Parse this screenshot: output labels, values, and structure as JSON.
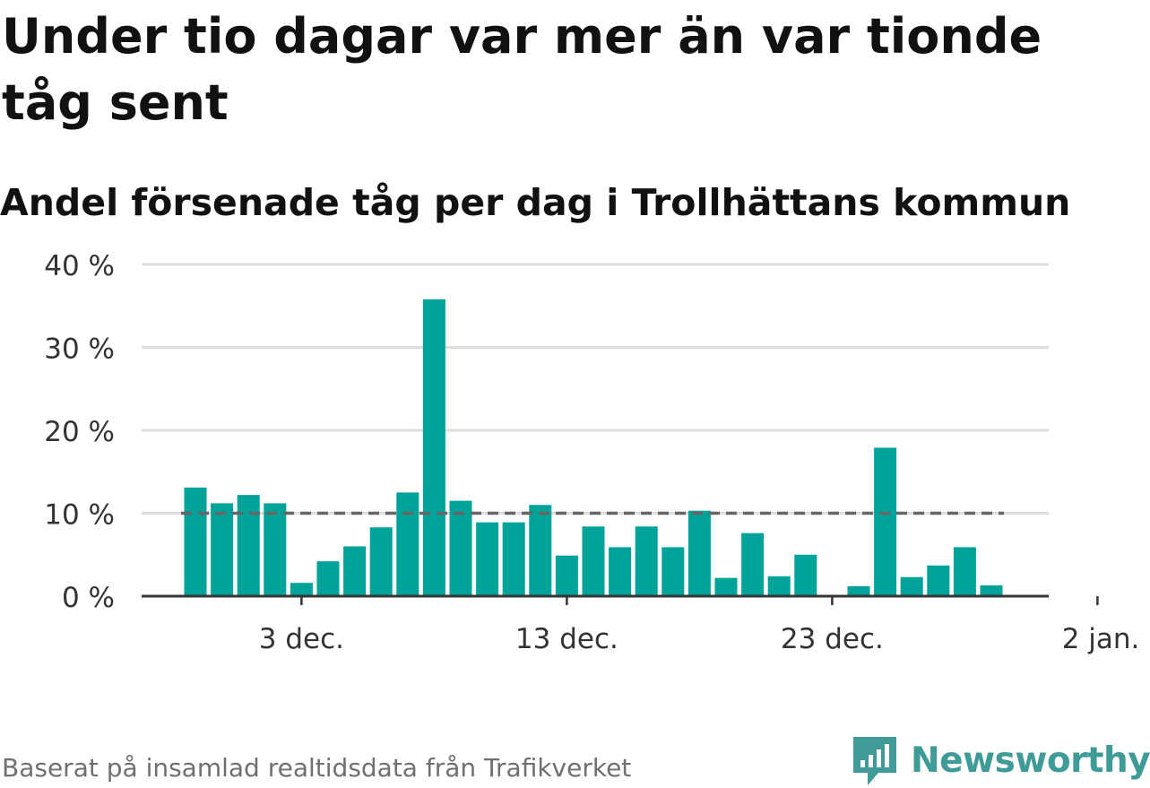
{
  "title": "Under tio dagar var mer än var tionde tåg sent",
  "subtitle": "Andel försenade tåg per dag i Trollhättans kommun",
  "footer": "Baserat på insamlad realtidsdata från Trafikverket",
  "brand": {
    "name": "Newsworthy",
    "icon": "newsworthy-logo-icon",
    "color": "#3f9b97"
  },
  "colors": {
    "bar": "#00a39a",
    "reference": "#666666",
    "grid": "#dddddd",
    "axis": "#333333"
  },
  "chart_data": {
    "type": "bar",
    "x": [
      "2023-11-29",
      "2023-11-30",
      "2023-12-01",
      "2023-12-02",
      "2023-12-03",
      "2023-12-04",
      "2023-12-05",
      "2023-12-06",
      "2023-12-07",
      "2023-12-08",
      "2023-12-09",
      "2023-12-10",
      "2023-12-11",
      "2023-12-12",
      "2023-12-13",
      "2023-12-14",
      "2023-12-15",
      "2023-12-16",
      "2023-12-17",
      "2023-12-18",
      "2023-12-19",
      "2023-12-20",
      "2023-12-21",
      "2023-12-22",
      "2023-12-23",
      "2023-12-24",
      "2023-12-25",
      "2023-12-26",
      "2023-12-27",
      "2023-12-28",
      "2023-12-29",
      "2023-12-30",
      "2023-12-31"
    ],
    "values": [
      13.1,
      11.2,
      12.2,
      11.2,
      1.6,
      4.2,
      6.0,
      8.3,
      12.5,
      35.8,
      11.5,
      8.9,
      8.9,
      11.0,
      4.9,
      8.4,
      5.9,
      8.4,
      5.9,
      10.3,
      2.2,
      7.6,
      2.4,
      5.0,
      null,
      1.2,
      17.9,
      2.3,
      3.7,
      5.9,
      1.3,
      null,
      null
    ],
    "reference_line": 10,
    "ylim": [
      0,
      40
    ],
    "y_ticks": [
      0,
      10,
      20,
      30,
      40
    ],
    "y_tick_labels": [
      "0 %",
      "10 %",
      "20 %",
      "30 %",
      "40 %"
    ],
    "x_ticks": [
      "2023-12-03",
      "2023-12-13",
      "2023-12-23",
      "2024-01-02"
    ],
    "x_tick_labels": [
      "3 dec.",
      "13 dec.",
      "23 dec.",
      "2 jan."
    ],
    "grid": true
  }
}
